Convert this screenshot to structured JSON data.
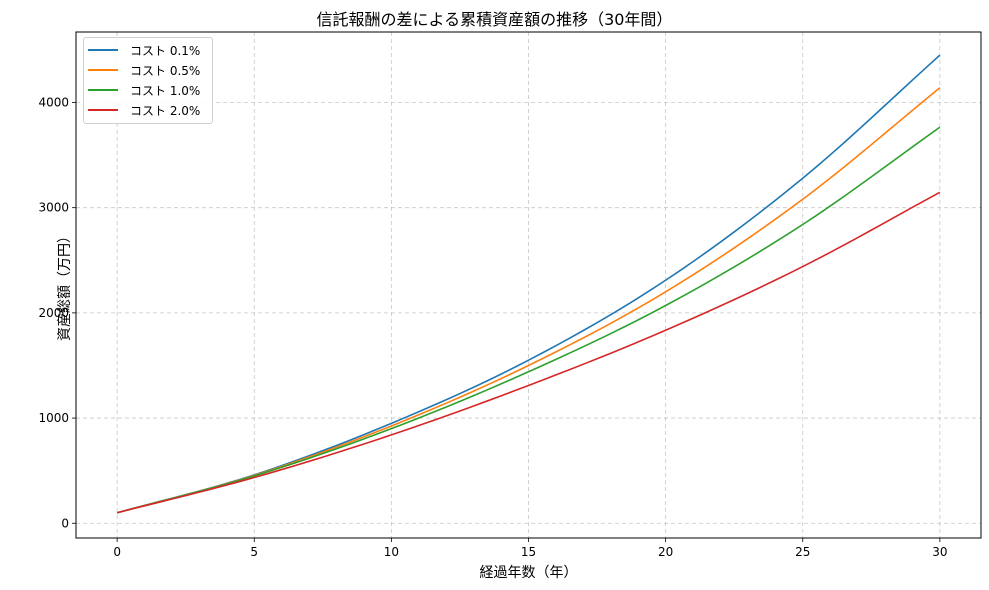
{
  "chart_data": {
    "type": "line",
    "title": "信託報酬の差による累積資産額の推移（30年間）",
    "xlabel": "経過年数（年）",
    "ylabel": "資産総額（万円）",
    "xlim": [
      -1.5,
      31.5
    ],
    "ylim": [
      -140,
      4670
    ],
    "xticks": [
      0,
      5,
      10,
      15,
      20,
      25,
      30
    ],
    "yticks": [
      0,
      1000,
      2000,
      3000,
      4000
    ],
    "grid": true,
    "grid_style": "dashed",
    "legend_position": "upper left",
    "x": [
      0,
      5,
      10,
      15,
      20,
      25,
      30
    ],
    "series": [
      {
        "name": "コスト 0.1%",
        "color": "#1f77b4",
        "values": [
          100,
          460,
          950,
          1550,
          2310,
          3280,
          4450
        ]
      },
      {
        "name": "コスト 0.5%",
        "color": "#ff7f0e",
        "values": [
          100,
          455,
          925,
          1500,
          2200,
          3080,
          4140
        ]
      },
      {
        "name": "コスト 1.0%",
        "color": "#2ca02c",
        "values": [
          100,
          450,
          900,
          1440,
          2070,
          2840,
          3765
        ]
      },
      {
        "name": "コスト 2.0%",
        "color": "#d62728",
        "values": [
          100,
          435,
          840,
          1310,
          1835,
          2440,
          3146
        ]
      }
    ]
  }
}
